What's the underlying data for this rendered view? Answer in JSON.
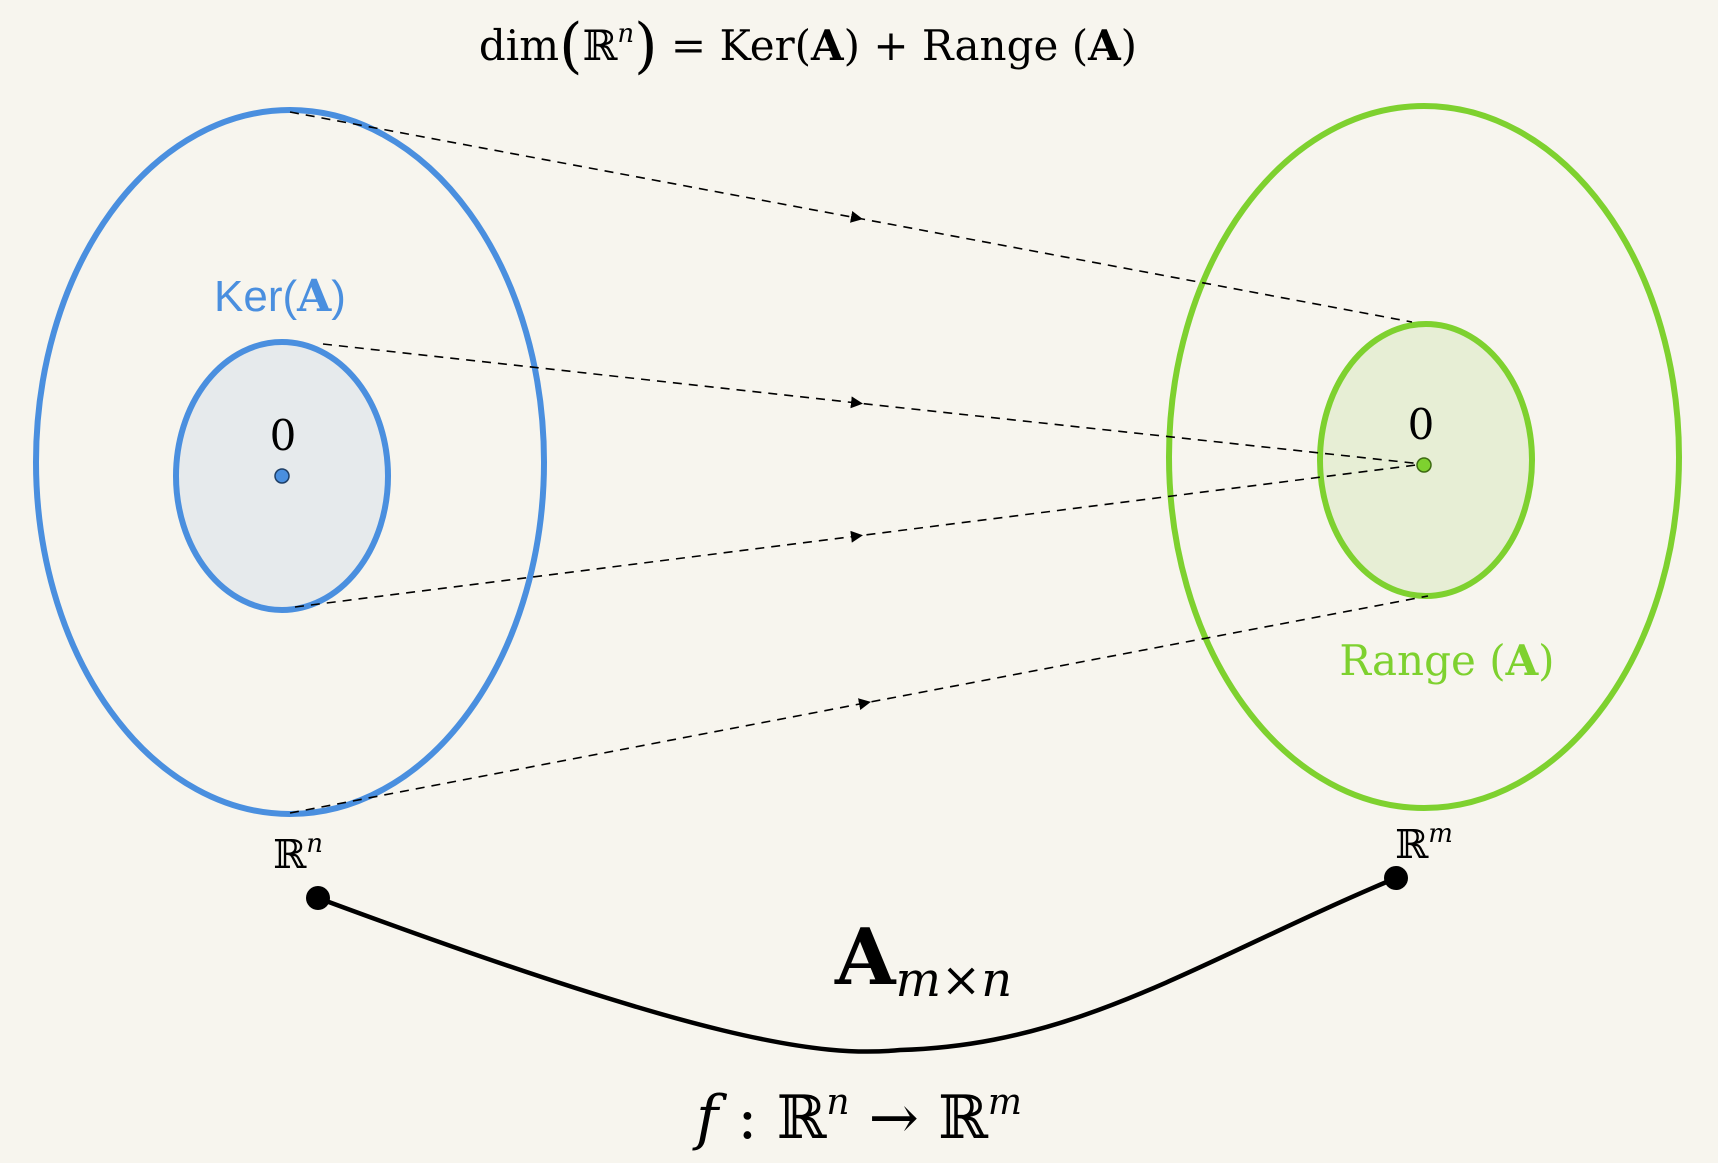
{
  "colors": {
    "background": "#f7f5ee",
    "kernel": "#4a8fdf",
    "kernel_fill": "#e6eaec",
    "range": "#7ed12f",
    "range_fill": "#e7eed5",
    "ink": "#000000"
  },
  "title": {
    "dim": "dim",
    "space": "ℝ",
    "space_exp": "n",
    "rest_eq": " = Ker(",
    "A1": "A",
    "plus_range": ") + Range (",
    "A2": "A",
    "close": ")"
  },
  "domain": {
    "label": "ℝ",
    "label_exp": "n",
    "kernel_label_pre": "Ker(",
    "kernel_label_A": "A",
    "kernel_label_post": ")",
    "zero": "0"
  },
  "codomain": {
    "label": "ℝ",
    "label_exp": "m",
    "range_label_pre": "Range (",
    "range_label_A": "A",
    "range_label_post": ")",
    "zero": "0"
  },
  "matrix": {
    "symbol": "A",
    "subscript": "m×n"
  },
  "function": {
    "f": "f",
    "colon_space": " : ℝ",
    "from_exp": "n",
    "arrow_space": " → ℝ",
    "to_exp": "m"
  }
}
